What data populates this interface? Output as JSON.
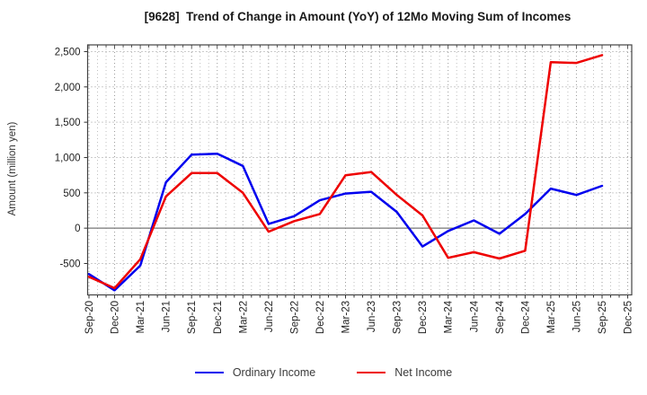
{
  "header": {
    "title": "[9628]  Trend of Change in Amount (YoY) of 12Mo Moving Sum of Incomes"
  },
  "chart_data": {
    "type": "line",
    "title": "[9628]  Trend of Change in Amount (YoY) of 12Mo Moving Sum of Incomes",
    "xlabel": "",
    "ylabel": "Amount (million yen)",
    "categories": [
      "Sep-20",
      "Dec-20",
      "Mar-21",
      "Jun-21",
      "Sep-21",
      "Dec-21",
      "Mar-22",
      "Jun-22",
      "Sep-22",
      "Dec-22",
      "Mar-23",
      "Jun-23",
      "Sep-23",
      "Dec-23",
      "Mar-24",
      "Jun-24",
      "Sep-24",
      "Dec-24",
      "Mar-25",
      "Jun-25",
      "Sep-25",
      "Dec-25"
    ],
    "series": [
      {
        "name": "Ordinary Income",
        "color": "#0000ee",
        "values": [
          -650,
          -880,
          -530,
          650,
          1040,
          1055,
          880,
          60,
          170,
          395,
          490,
          515,
          230,
          -260,
          -40,
          110,
          -80,
          200,
          560,
          470,
          600
        ]
      },
      {
        "name": "Net Income",
        "color": "#ee0000",
        "values": [
          -690,
          -850,
          -440,
          450,
          780,
          780,
          500,
          -50,
          100,
          200,
          750,
          795,
          470,
          180,
          -420,
          -340,
          -430,
          -320,
          2350,
          2340,
          2450
        ]
      }
    ],
    "yticks": [
      {
        "value": 2500,
        "label": "2,500"
      },
      {
        "value": 2000,
        "label": "2,000"
      },
      {
        "value": 1500,
        "label": "1,500"
      },
      {
        "value": 1000,
        "label": "1,000"
      },
      {
        "value": 500,
        "label": "500"
      },
      {
        "value": 0,
        "label": "0"
      },
      {
        "value": -500,
        "label": "-500"
      }
    ],
    "ylim": [
      -945,
      2595
    ],
    "grid": true,
    "legend_position": "bottom",
    "axis_color": "#444444",
    "grid_color": "#9a9a9a",
    "zero_line_color": "#777777",
    "tick_label_color": "#222222"
  }
}
